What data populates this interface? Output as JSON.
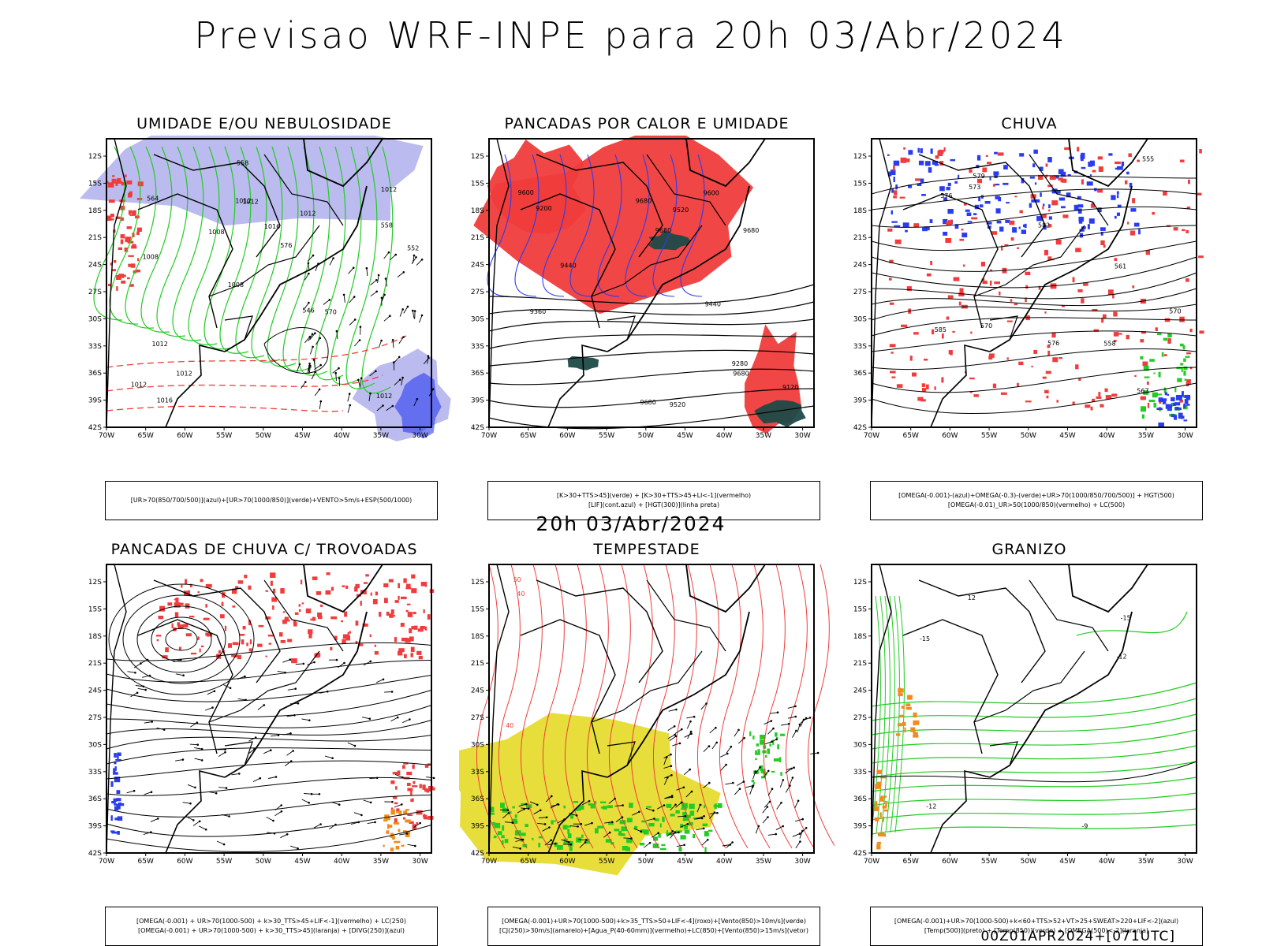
{
  "header": {
    "title": "Previsao WRF-INPE  para 20h 03/Abr/2024",
    "mid_title": "20h 03/Abr/2024",
    "run_stamp": "00Z01APR2024+[071UTC]"
  },
  "axes": {
    "lat_labels": [
      "12S",
      "15S",
      "18S",
      "21S",
      "24S",
      "27S",
      "30S",
      "33S",
      "36S",
      "39S",
      "42S"
    ],
    "lon_labels": [
      "70W",
      "65W",
      "60W",
      "55W",
      "50W",
      "45W",
      "40W",
      "35W",
      "30W"
    ]
  },
  "palette": {
    "red": "#f03c3c",
    "green": "#22cc22",
    "blue": "#2a3cf0",
    "lavender": "#b4b4ee",
    "yellow": "#e6dc32",
    "dark_teal": "#1e4a48",
    "orange": "#f08c1e",
    "black": "#000000"
  },
  "panels": [
    {
      "title": "UMIDADE E/OU NEBULOSIDADE",
      "caption": [
        "[UR>70(850/700/500)](azul)+[UR>70(1000/850)](verde)+VENTO>5m/s+ESP(500/1000)"
      ],
      "contour_labels": [
        "1012",
        "1008",
        "1012",
        "1008",
        "1012",
        "1016",
        "1012",
        "1016",
        "1012",
        "1008",
        "1012",
        "1012",
        "1012",
        "576",
        "570",
        "564",
        "558",
        "552",
        "546",
        "558"
      ]
    },
    {
      "title": "PANCADAS POR CALOR E UMIDADE",
      "caption": [
        "[K>30+TTS>45](verde) + [K>30+TTS>45+LI<-1](vermelho)",
        "[LIF](cont.azul) + [HGT(300)](linha preta)"
      ],
      "contour_labels": [
        "9680",
        "9680",
        "9600",
        "9680",
        "9680",
        "9680",
        "9520",
        "9600",
        "9440",
        "9360",
        "9280",
        "9520",
        "9440",
        "9200",
        "9120"
      ]
    },
    {
      "title": "CHUVA",
      "caption": [
        "[OMEGA(-0.001)-(azul)+OMEGA(-0.3)-(verde)+UR>70(1000/850/700/500)] + HGT(500)",
        "[OMEGA(-0.01)_UR>50(1000/850)(vermelho) + LC(500)"
      ],
      "contour_labels": [
        "585",
        "582",
        "576",
        "579",
        "570",
        "561",
        "558",
        "555",
        "573",
        "567",
        "576",
        "570"
      ]
    },
    {
      "title": "PANCADAS DE CHUVA C/ TROVOADAS",
      "caption": [
        "[OMEGA(-0.001) + UR>70(1000-500) + k>30_TTS>45+LIF<-1](vermelho) + LC(250)",
        "[OMEGA(-0.001) + UR>70(1000-500) + k>30_TTS>45](laranja) + [DIVG(250)](azul)"
      ],
      "contour_labels": []
    },
    {
      "title": "TEMPESTADE",
      "caption": [
        "[OMEGA(-0.001)+UR>70(1000-500)+k>35_TTS>50+LIF<-4](roxo)+[Vento(850)>10m/s](verde)",
        "[CJ(250)>30m/s](amarelo)+[Agua_P(40-60mm)](vermelho)+LC(850)+[Vento(850)>15m/s](vetor)"
      ],
      "contour_labels": [
        "40",
        "50",
        "40"
      ]
    },
    {
      "title": "GRANIZO",
      "caption": [
        "[OMEGA(-0.001)+UR>70(1000-500)+k<60+TTS>52+VT>25+SWEAT>220+LIF<-2](azul)",
        "[Temp(500)](preto) + [Temp(850)](verde) + [OMEGA(500)<-2](laranja)"
      ],
      "contour_labels": [
        "12",
        "-12",
        "-9",
        "-15",
        "-15",
        "-12"
      ]
    }
  ]
}
